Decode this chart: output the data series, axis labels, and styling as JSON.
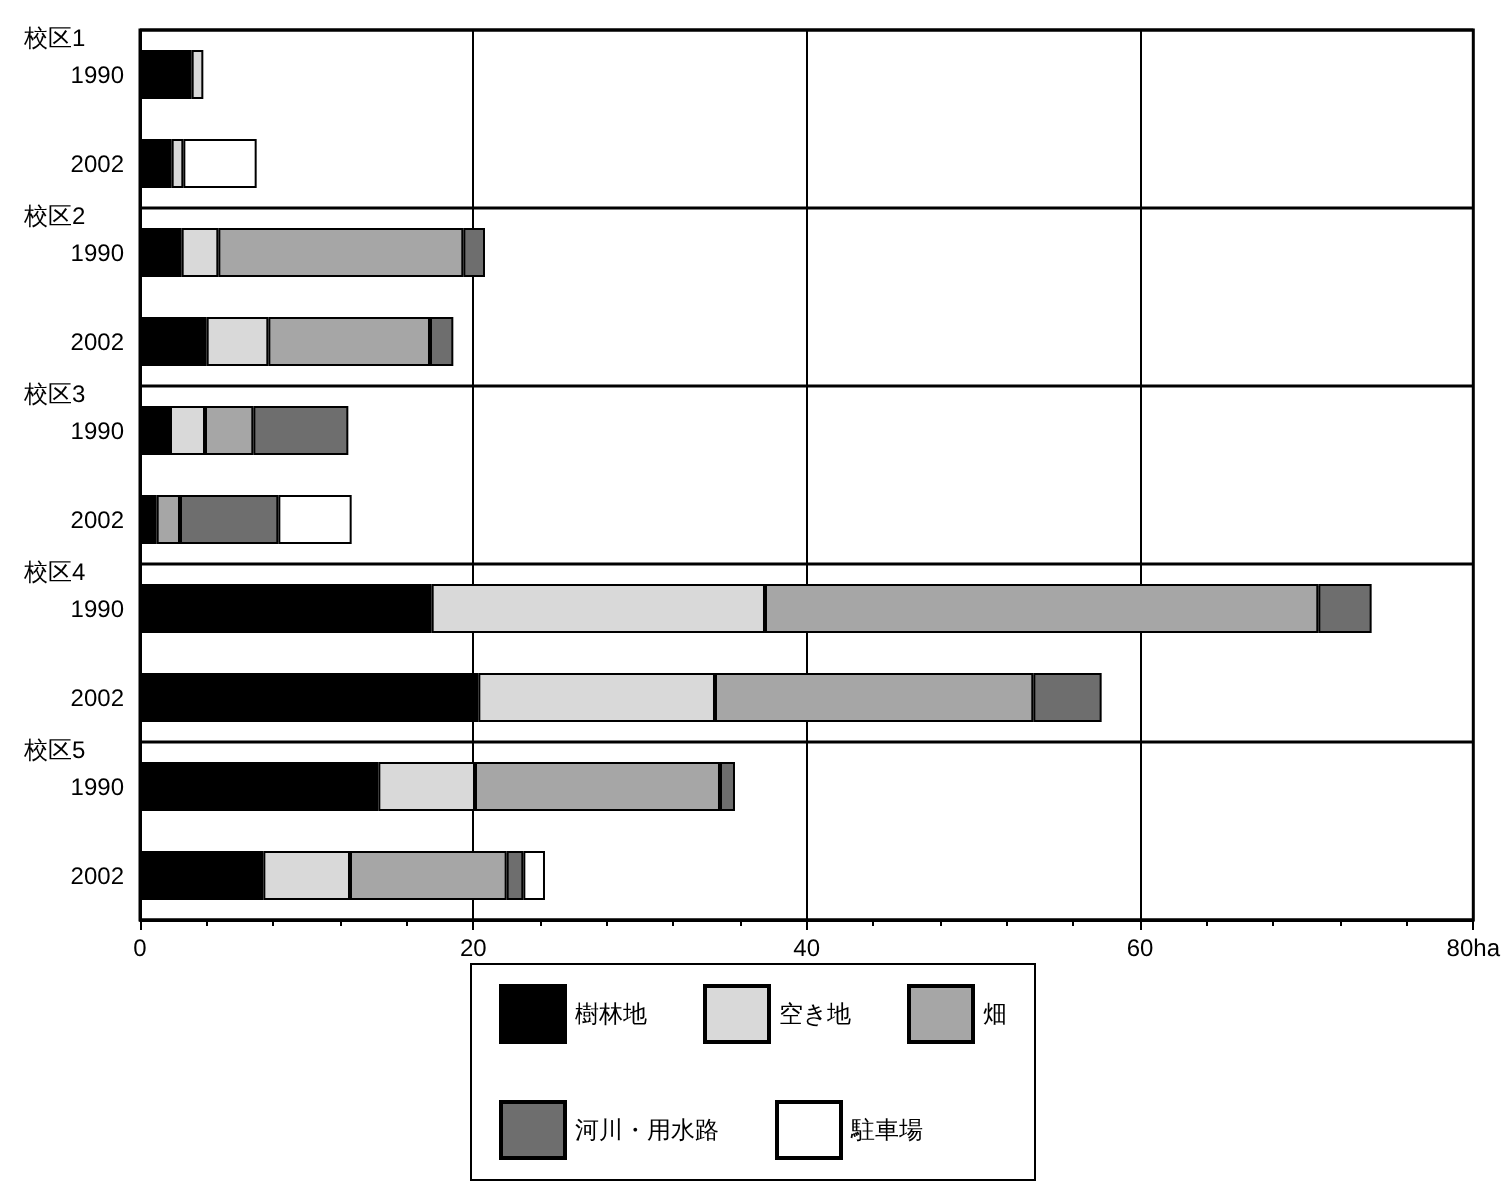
{
  "chart_data": {
    "type": "bar",
    "orientation": "horizontal",
    "stacked": true,
    "categories": [
      "1990",
      "2002",
      "1990",
      "2002",
      "1990",
      "2002",
      "1990",
      "2002",
      "1990",
      "2002"
    ],
    "annotations": [
      "校区1",
      "校区2",
      "校区3",
      "校区4",
      "校区5"
    ],
    "series": [
      {
        "name": "樹林地",
        "color": "#000000",
        "values": [
          3.1,
          1.9,
          2.5,
          4.0,
          1.8,
          1.0,
          17.5,
          20.3,
          14.3,
          7.4
        ]
      },
      {
        "name": "空き地",
        "color": "#d9d9d9",
        "values": [
          0.7,
          0.7,
          2.2,
          3.7,
          2.1,
          null,
          20.0,
          14.2,
          5.8,
          5.2
        ]
      },
      {
        "name": "畑",
        "color": "#a6a6a6",
        "values": [
          null,
          null,
          14.7,
          9.7,
          2.9,
          1.4,
          33.2,
          19.1,
          14.7,
          9.4
        ]
      },
      {
        "name": "河川・用水路",
        "color": "#6e6e6e",
        "values": [
          null,
          null,
          1.3,
          1.4,
          5.7,
          5.9,
          3.2,
          4.1,
          0.9,
          1.0
        ]
      },
      {
        "name": "駐車場",
        "color": "#ffffff",
        "values": [
          null,
          4.4,
          null,
          null,
          null,
          4.4,
          null,
          null,
          null,
          1.3
        ]
      }
    ],
    "xlim": [
      0,
      80
    ],
    "xticks": [
      0,
      20,
      40,
      60,
      {
        "value": 80,
        "label": "80ha"
      }
    ],
    "grid": true,
    "legend": "bottom"
  }
}
